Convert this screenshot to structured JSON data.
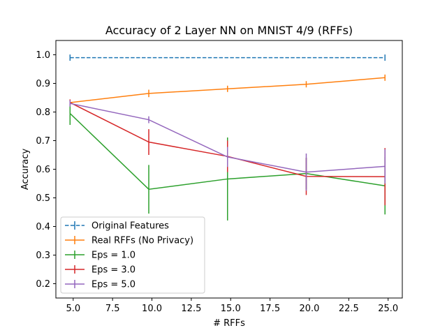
{
  "chart_data": {
    "type": "line",
    "title": "Accuracy of 2 Layer NN on MNIST 4/9 (RFFs)",
    "xlabel": "# RFFs",
    "ylabel": "Accuracy",
    "xlim": [
      3.9,
      25.9
    ],
    "ylim": [
      0.15,
      1.05
    ],
    "xticks": [
      5.0,
      7.5,
      10.0,
      12.5,
      15.0,
      17.5,
      20.0,
      22.5,
      25.0
    ],
    "xtick_labels": [
      "5.0",
      "7.5",
      "10.0",
      "12.5",
      "15.0",
      "17.5",
      "20.0",
      "22.5",
      "25.0"
    ],
    "yticks": [
      0.2,
      0.3,
      0.4,
      0.5,
      0.6,
      0.7,
      0.8,
      0.9,
      1.0
    ],
    "ytick_labels": [
      "0.2",
      "0.3",
      "0.4",
      "0.5",
      "0.6",
      "0.7",
      "0.8",
      "0.9",
      "1.0"
    ],
    "grid": false,
    "legend_position": "lower-left",
    "series": [
      {
        "name": "Original Features",
        "color": "#1f77b4",
        "dashed": true,
        "x": [
          4.8,
          24.8
        ],
        "y": [
          0.99,
          0.99
        ],
        "err": [
          0,
          0
        ]
      },
      {
        "name": "Real RFFs (No Privacy)",
        "color": "#ff7f0e",
        "dashed": false,
        "x": [
          4.8,
          9.8,
          14.8,
          19.8,
          24.8
        ],
        "y": [
          0.833,
          0.865,
          0.881,
          0.897,
          0.92
        ],
        "err": [
          0.005,
          0.013,
          0.006,
          0.005,
          0.006
        ]
      },
      {
        "name": "Eps = 1.0",
        "color": "#2ca02c",
        "dashed": false,
        "x": [
          4.8,
          9.8,
          14.8,
          19.8,
          24.8
        ],
        "y": [
          0.795,
          0.53,
          0.566,
          0.585,
          0.542
        ],
        "err": [
          0.04,
          0.085,
          0.145,
          0.055,
          0.1
        ]
      },
      {
        "name": "Eps = 3.0",
        "color": "#d62728",
        "dashed": false,
        "x": [
          4.8,
          9.8,
          14.8,
          19.8,
          24.8
        ],
        "y": [
          0.833,
          0.695,
          0.645,
          0.575,
          0.574
        ],
        "err": [
          0.005,
          0.045,
          0.055,
          0.065,
          0.1
        ]
      },
      {
        "name": "Eps = 5.0",
        "color": "#9467bd",
        "dashed": false,
        "x": [
          4.8,
          9.8,
          14.8,
          19.8,
          24.8
        ],
        "y": [
          0.83,
          0.773,
          0.643,
          0.59,
          0.61
        ],
        "err": [
          0.005,
          0.012,
          0.035,
          0.065,
          0.06
        ]
      }
    ]
  }
}
